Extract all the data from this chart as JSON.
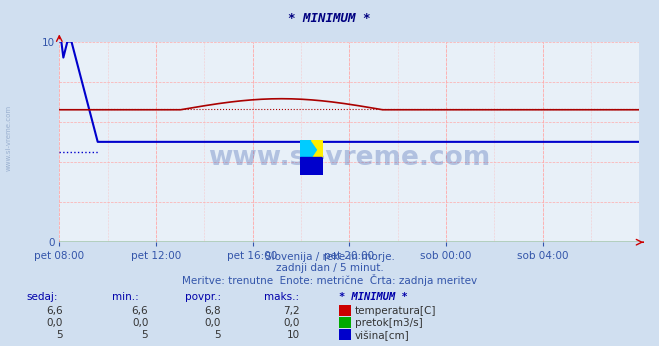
{
  "title": "* MINIMUM *",
  "bg_color": "#d0dff0",
  "plot_bg_color": "#e8f0f8",
  "grid_color_minor": "#ffaaaa",
  "xlabel_color": "#3355aa",
  "title_color": "#000080",
  "watermark": "www.si-vreme.com",
  "subtitle1": "Slovenija / reke in morje.",
  "subtitle2": "zadnji dan / 5 minut.",
  "subtitle3": "Meritve: trenutne  Enote: metrične  Črta: zadnja meritev",
  "xticklabels": [
    "pet 08:00",
    "pet 12:00",
    "pet 16:00",
    "pet 20:00",
    "sob 00:00",
    "sob 04:00"
  ],
  "xtick_positions": [
    0.0,
    0.1667,
    0.3333,
    0.5,
    0.6667,
    0.8333
  ],
  "ylim": [
    0,
    10
  ],
  "yticks": [
    0,
    10
  ],
  "n_points": 288,
  "temp_color": "#aa0000",
  "pretok_color": "#007700",
  "visina_color": "#0000cc",
  "sidebar_color": "#9ab0d0",
  "table_header_color": "#0000aa",
  "table_value_color": "#333333",
  "legend_color_temp": "#cc0000",
  "legend_color_pretok": "#00aa00",
  "legend_color_visina": "#0000cc",
  "sedaj": [
    "6,6",
    "0,0",
    "5"
  ],
  "min": [
    "6,6",
    "0,0",
    "5"
  ],
  "povpr": [
    "6,8",
    "0,0",
    "5"
  ],
  "maks": [
    "7,2",
    "0,0",
    "10"
  ],
  "labels": [
    "temperatura[C]",
    "pretok[m3/s]",
    "višina[cm]"
  ]
}
